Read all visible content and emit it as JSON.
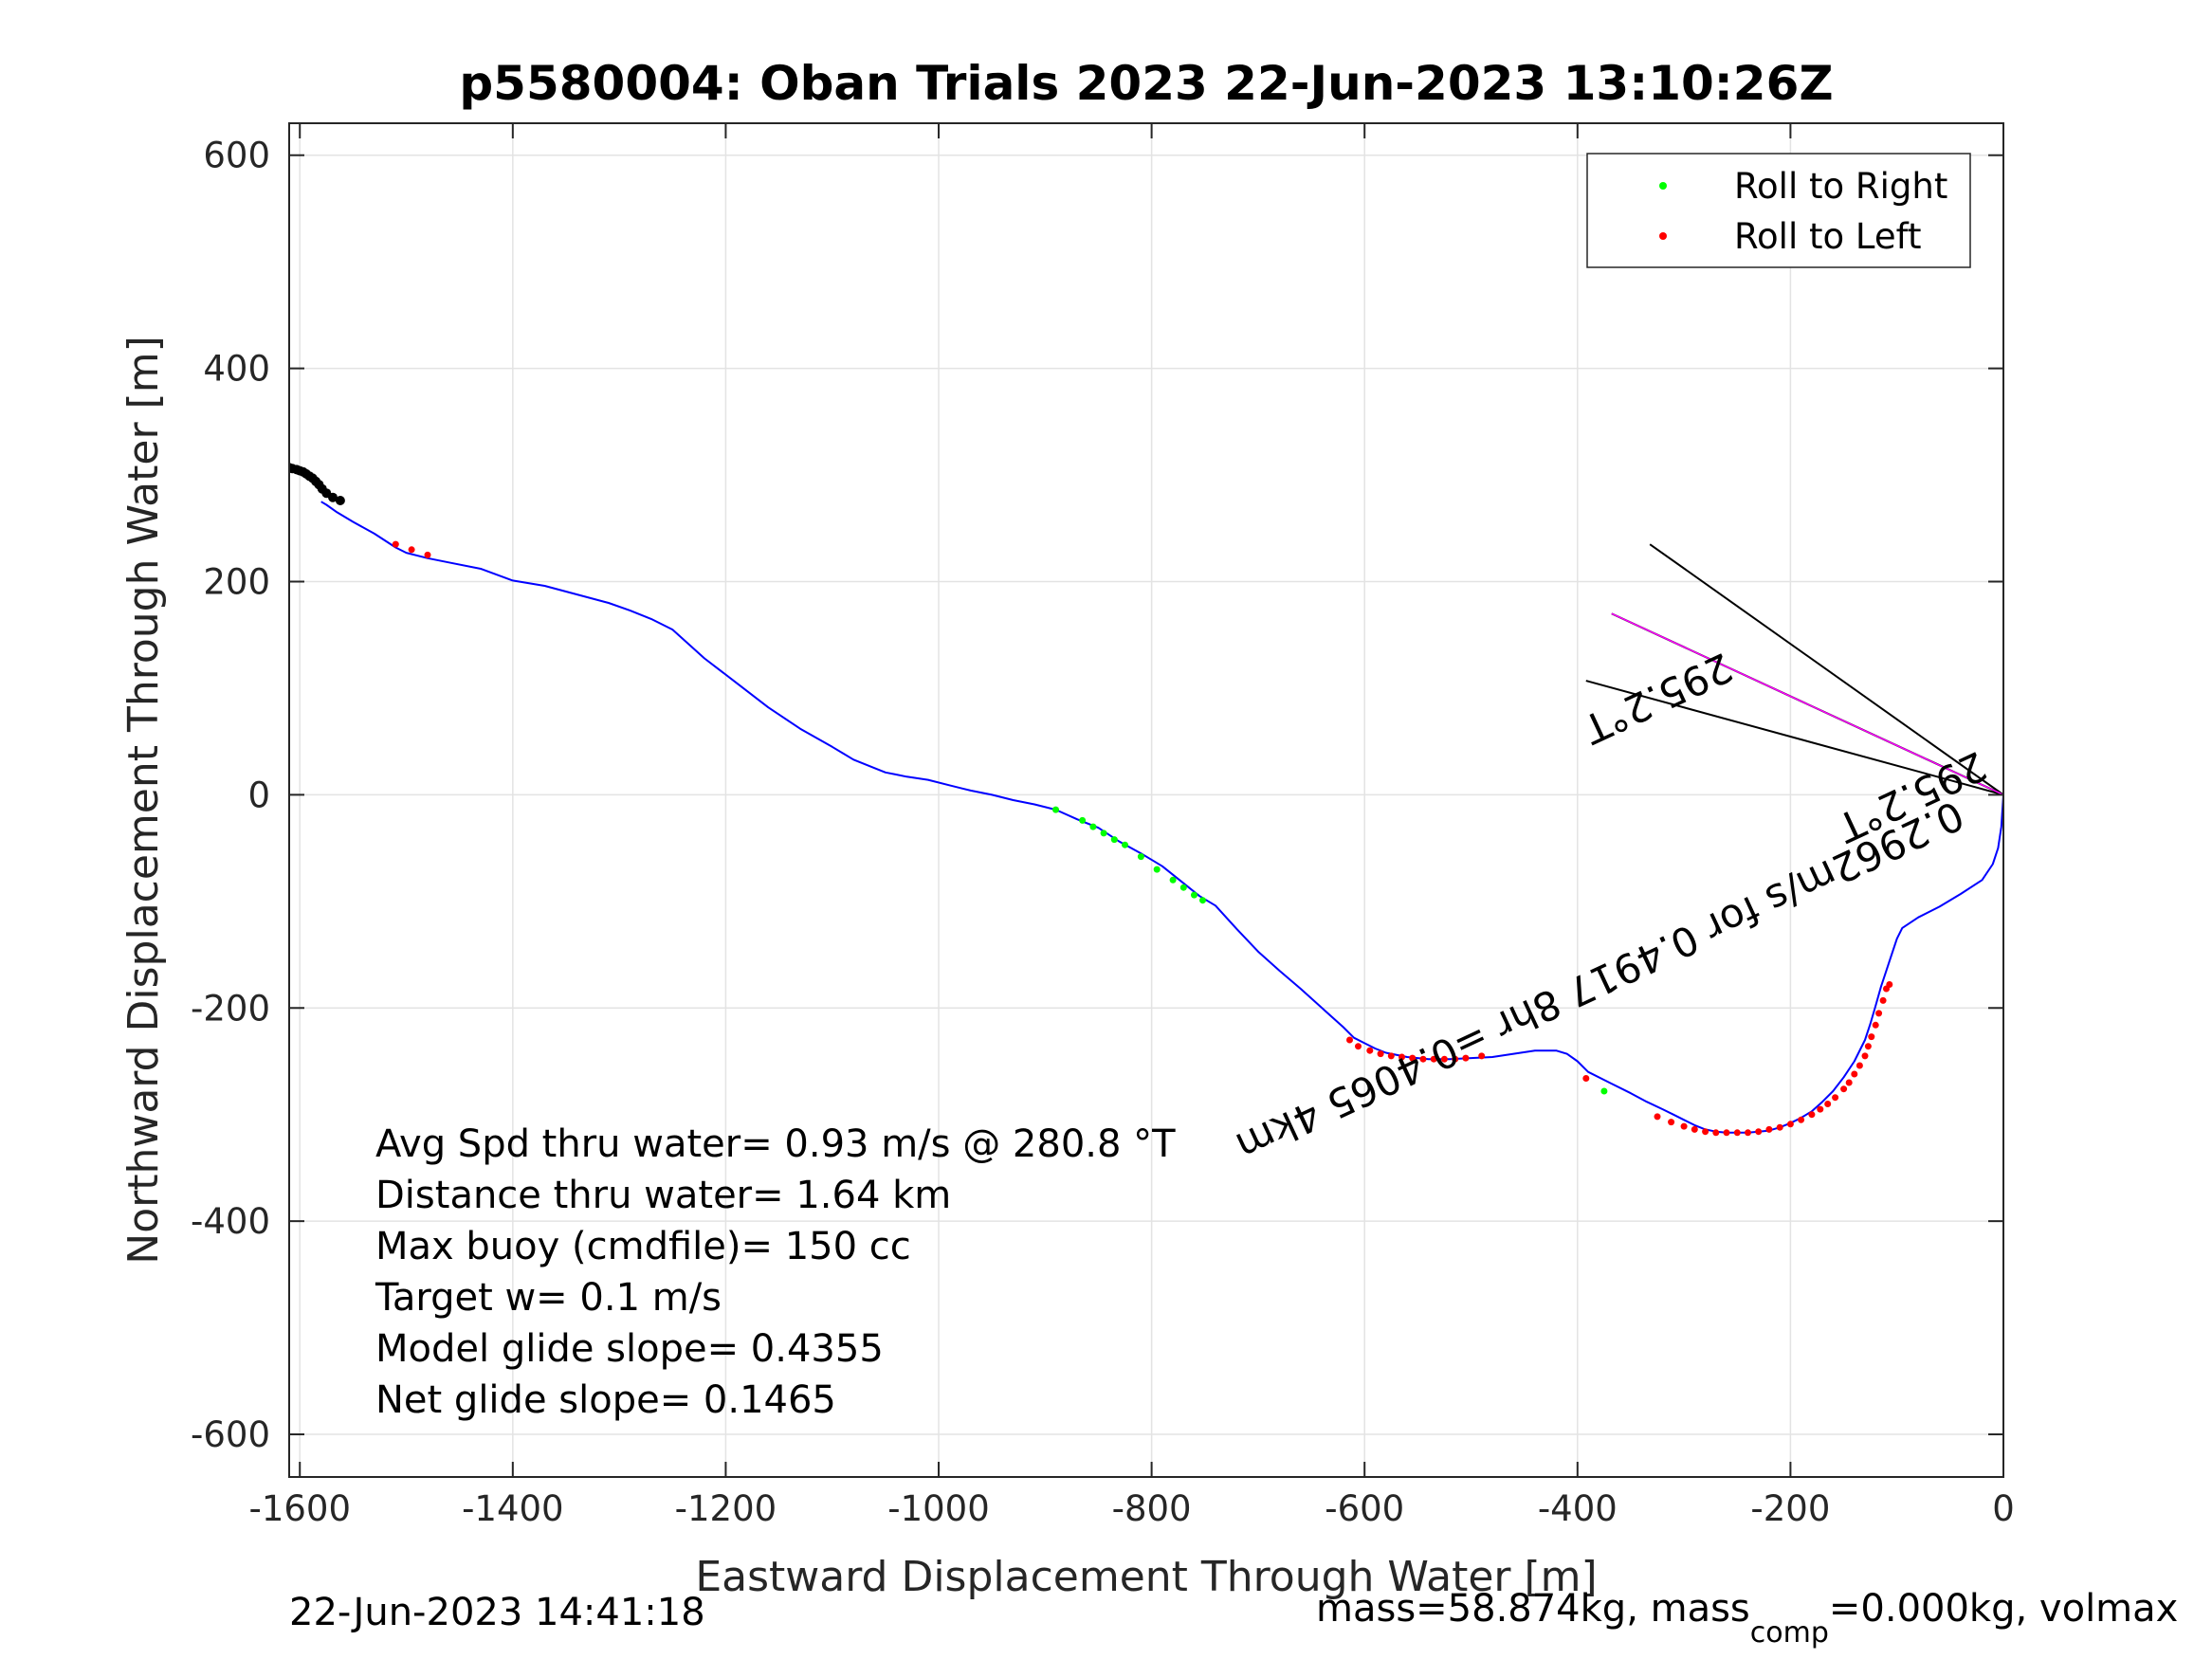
{
  "chart_data": {
    "type": "line",
    "title": "p5580004: Oban Trials 2023 22-Jun-2023 13:10:26Z",
    "xlabel": "Eastward Displacement Through Water [m]",
    "ylabel": "Northward Displacement Through Water [m]",
    "xlim": [
      -1610,
      0
    ],
    "ylim": [
      -640,
      630
    ],
    "grid": true,
    "x_ticks": [
      -1600,
      -1400,
      -1200,
      -1000,
      -800,
      -600,
      -400,
      -200,
      0
    ],
    "x_tick_labels": [
      "-1600",
      "-1400",
      "-1200",
      "-1000",
      "-800",
      "-600",
      "-400",
      "-200",
      "0"
    ],
    "y_ticks": [
      600,
      400,
      200,
      0,
      -200,
      -400,
      -600
    ],
    "y_tick_labels": [
      "600",
      "400",
      "200",
      "0",
      "-200",
      "-400",
      "-600"
    ],
    "legend": {
      "location": "top-right",
      "entries": [
        {
          "label": "Roll to Right",
          "color": "#00ff00"
        },
        {
          "label": "Roll to Left",
          "color": "#ff0000"
        }
      ]
    },
    "series": [
      {
        "style": "line",
        "color": "#0000ff",
        "x": [
          0,
          -2,
          -5,
          -10,
          -20,
          -40,
          -60,
          -80,
          -95,
          -100,
          -105,
          -110,
          -115,
          -120,
          -125,
          -130,
          -140,
          -150,
          -160,
          -170,
          -180,
          -190,
          -200,
          -210,
          -220,
          -230,
          -240,
          -250,
          -260,
          -270,
          -280,
          -290,
          -300,
          -310,
          -320,
          -335,
          -350,
          -370,
          -390,
          -400,
          -410,
          -420,
          -440,
          -460,
          -480,
          -500,
          -520,
          -540,
          -560,
          -580,
          -590,
          -600,
          -610,
          -620,
          -640,
          -660,
          -680,
          -700,
          -720,
          -740,
          -755,
          -770,
          -790,
          -810,
          -830,
          -850,
          -870,
          -890,
          -910,
          -930,
          -950,
          -970,
          -990,
          -1010,
          -1030,
          -1040,
          -1050,
          -1060,
          -1080,
          -1100,
          -1130,
          -1160,
          -1190,
          -1220,
          -1250,
          -1270,
          -1290,
          -1310,
          -1340,
          -1370,
          -1400,
          -1430,
          -1460,
          -1480,
          -1500,
          -1510,
          -1530,
          -1550,
          -1565,
          -1575,
          -1580
        ],
        "y": [
          0,
          -30,
          -50,
          -65,
          -80,
          -93,
          -105,
          -115,
          -125,
          -135,
          -150,
          -165,
          -180,
          -198,
          -215,
          -230,
          -250,
          -265,
          -278,
          -288,
          -297,
          -303,
          -308,
          -312,
          -315,
          -316,
          -317,
          -317,
          -317,
          -316,
          -314,
          -310,
          -305,
          -300,
          -295,
          -288,
          -280,
          -270,
          -260,
          -250,
          -243,
          -240,
          -240,
          -243,
          -246,
          -247,
          -248,
          -248,
          -246,
          -242,
          -238,
          -233,
          -228,
          -218,
          -200,
          -182,
          -165,
          -147,
          -126,
          -104,
          -95,
          -83,
          -67,
          -55,
          -44,
          -31,
          -23,
          -14,
          -9,
          -5,
          0,
          4,
          9,
          14,
          17,
          19,
          21,
          25,
          33,
          45,
          62,
          82,
          105,
          128,
          155,
          165,
          173,
          180,
          188,
          196,
          201,
          212,
          218,
          222,
          227,
          232,
          245,
          256,
          265,
          272,
          275
        ]
      },
      {
        "name": "Roll to Right",
        "style": "markers",
        "color": "#00ff00",
        "x": [
          -890,
          -865,
          -855,
          -845,
          -835,
          -825,
          -810,
          -795,
          -780,
          -770,
          -760,
          -752,
          -375
        ],
        "y": [
          -14,
          -24,
          -30,
          -36,
          -42,
          -47,
          -58,
          -70,
          -80,
          -87,
          -94,
          -99,
          -278
        ]
      },
      {
        "name": "Roll to Left",
        "style": "markers",
        "color": "#ff0000",
        "x": [
          -1510,
          -1495,
          -1480,
          -614,
          -606,
          -595,
          -585,
          -575,
          -565,
          -555,
          -545,
          -535,
          -525,
          -515,
          -505,
          -490,
          -392,
          -325,
          -312,
          -300,
          -290,
          -280,
          -270,
          -260,
          -250,
          -240,
          -230,
          -220,
          -210,
          -200,
          -190,
          -180,
          -172,
          -165,
          -158,
          -150,
          -145,
          -140,
          -135,
          -130,
          -127,
          -124,
          -120,
          -117,
          -113,
          -110,
          -107
        ],
        "y": [
          235,
          230,
          225,
          -230,
          -236,
          -240,
          -243,
          -245,
          -246,
          -247,
          -248,
          -248,
          -248,
          -248,
          -247,
          -245,
          -266,
          -302,
          -307,
          -311,
          -314,
          -316,
          -317,
          -317,
          -317,
          -317,
          -316,
          -314,
          -312,
          -309,
          -305,
          -300,
          -295,
          -290,
          -284,
          -276,
          -270,
          -262,
          -254,
          -245,
          -236,
          -227,
          -216,
          -205,
          -193,
          -182,
          -178
        ]
      },
      {
        "style": "markers",
        "color": "#000000",
        "x": [
          -1610,
          -1607,
          -1603,
          -1600,
          -1597,
          -1594,
          -1591,
          -1588,
          -1585,
          -1582,
          -1579,
          -1575,
          -1569,
          -1562
        ],
        "y": [
          307,
          306,
          305,
          304,
          303,
          301,
          299,
          297,
          294,
          291,
          287,
          283,
          279,
          276
        ]
      }
    ],
    "reference_lines": [
      {
        "color": "#000000",
        "from": [
          0,
          0
        ],
        "to": [
          -332,
          235
        ]
      },
      {
        "color": "#000000",
        "from": [
          0,
          0
        ],
        "to": [
          -392,
          107
        ]
      },
      {
        "color": "#000000",
        "from": [
          0,
          0
        ],
        "to": [
          -368,
          170
        ]
      },
      {
        "color": "#ff00ff",
        "from": [
          0,
          0
        ],
        "to": [
          -368,
          170
        ]
      }
    ],
    "rotated_labels": [
      {
        "text": "0.2962m/s for 0.4917 8hr =0.4065 4km",
        "rotation_deg": 155
      },
      {
        "text": "295.2°T",
        "rotation_deg": 155
      },
      {
        "text": "295.2°T",
        "rotation_deg": 155
      }
    ],
    "annotations": [
      "Avg Spd thru water=  0.93 m/s @ 280.8 °T",
      "Distance thru water=  1.64 km",
      "Max buoy (cmdfile)= 150 cc",
      "Target w= 0.1 m/s",
      "Model glide slope= 0.4355",
      "Net glide slope= 0.1465"
    ]
  },
  "footer": {
    "timestamp": "22-Jun-2023 14:41:18",
    "mass_text": "mass=58.874kg, mass",
    "mass_sub": "comp",
    "mass_tail": "=0.000kg, volmax"
  }
}
